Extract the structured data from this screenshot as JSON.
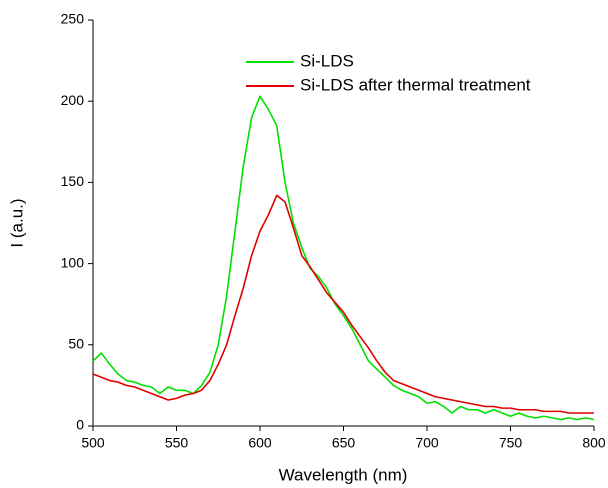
{
  "chart_data": {
    "type": "line",
    "xlabel": "Wavelength (nm)",
    "ylabel": "I (a.u.)",
    "x": [
      500,
      505,
      510,
      515,
      520,
      525,
      530,
      535,
      540,
      545,
      550,
      555,
      560,
      565,
      570,
      575,
      580,
      585,
      590,
      595,
      600,
      605,
      610,
      615,
      620,
      625,
      630,
      635,
      640,
      645,
      650,
      655,
      660,
      665,
      670,
      675,
      680,
      685,
      690,
      695,
      700,
      705,
      710,
      715,
      720,
      725,
      730,
      735,
      740,
      745,
      750,
      755,
      760,
      765,
      770,
      775,
      780,
      785,
      790,
      795,
      800
    ],
    "series": [
      {
        "name": "Si-LDS",
        "color": "#00e000",
        "values": [
          40,
          45,
          38,
          32,
          28,
          27,
          25,
          24,
          20,
          24,
          22,
          22,
          20,
          25,
          33,
          50,
          80,
          120,
          160,
          190,
          203,
          195,
          185,
          150,
          125,
          110,
          97,
          92,
          85,
          75,
          68,
          60,
          50,
          40,
          35,
          30,
          25,
          22,
          20,
          18,
          14,
          15,
          12,
          8,
          12,
          10,
          10,
          8,
          10,
          8,
          6,
          8,
          6,
          5,
          6,
          5,
          4,
          5,
          4,
          5,
          4
        ]
      },
      {
        "name": "Si-LDS after thermal treatment",
        "color": "#e00000",
        "values": [
          32,
          30,
          28,
          27,
          25,
          24,
          22,
          20,
          18,
          16,
          17,
          19,
          20,
          22,
          28,
          38,
          50,
          68,
          85,
          105,
          120,
          130,
          142,
          138,
          122,
          105,
          98,
          90,
          82,
          76,
          70,
          62,
          55,
          48,
          40,
          33,
          28,
          26,
          24,
          22,
          20,
          18,
          17,
          16,
          15,
          14,
          13,
          12,
          12,
          11,
          11,
          10,
          10,
          10,
          9,
          9,
          9,
          8,
          8,
          8,
          8
        ]
      }
    ],
    "xlim": [
      500,
      800
    ],
    "xticks": [
      500,
      550,
      600,
      650,
      700,
      750,
      800
    ],
    "ylim": [
      0,
      250
    ],
    "yticks": [
      0,
      50,
      100,
      150,
      200,
      250
    ],
    "legend": "upper right"
  }
}
